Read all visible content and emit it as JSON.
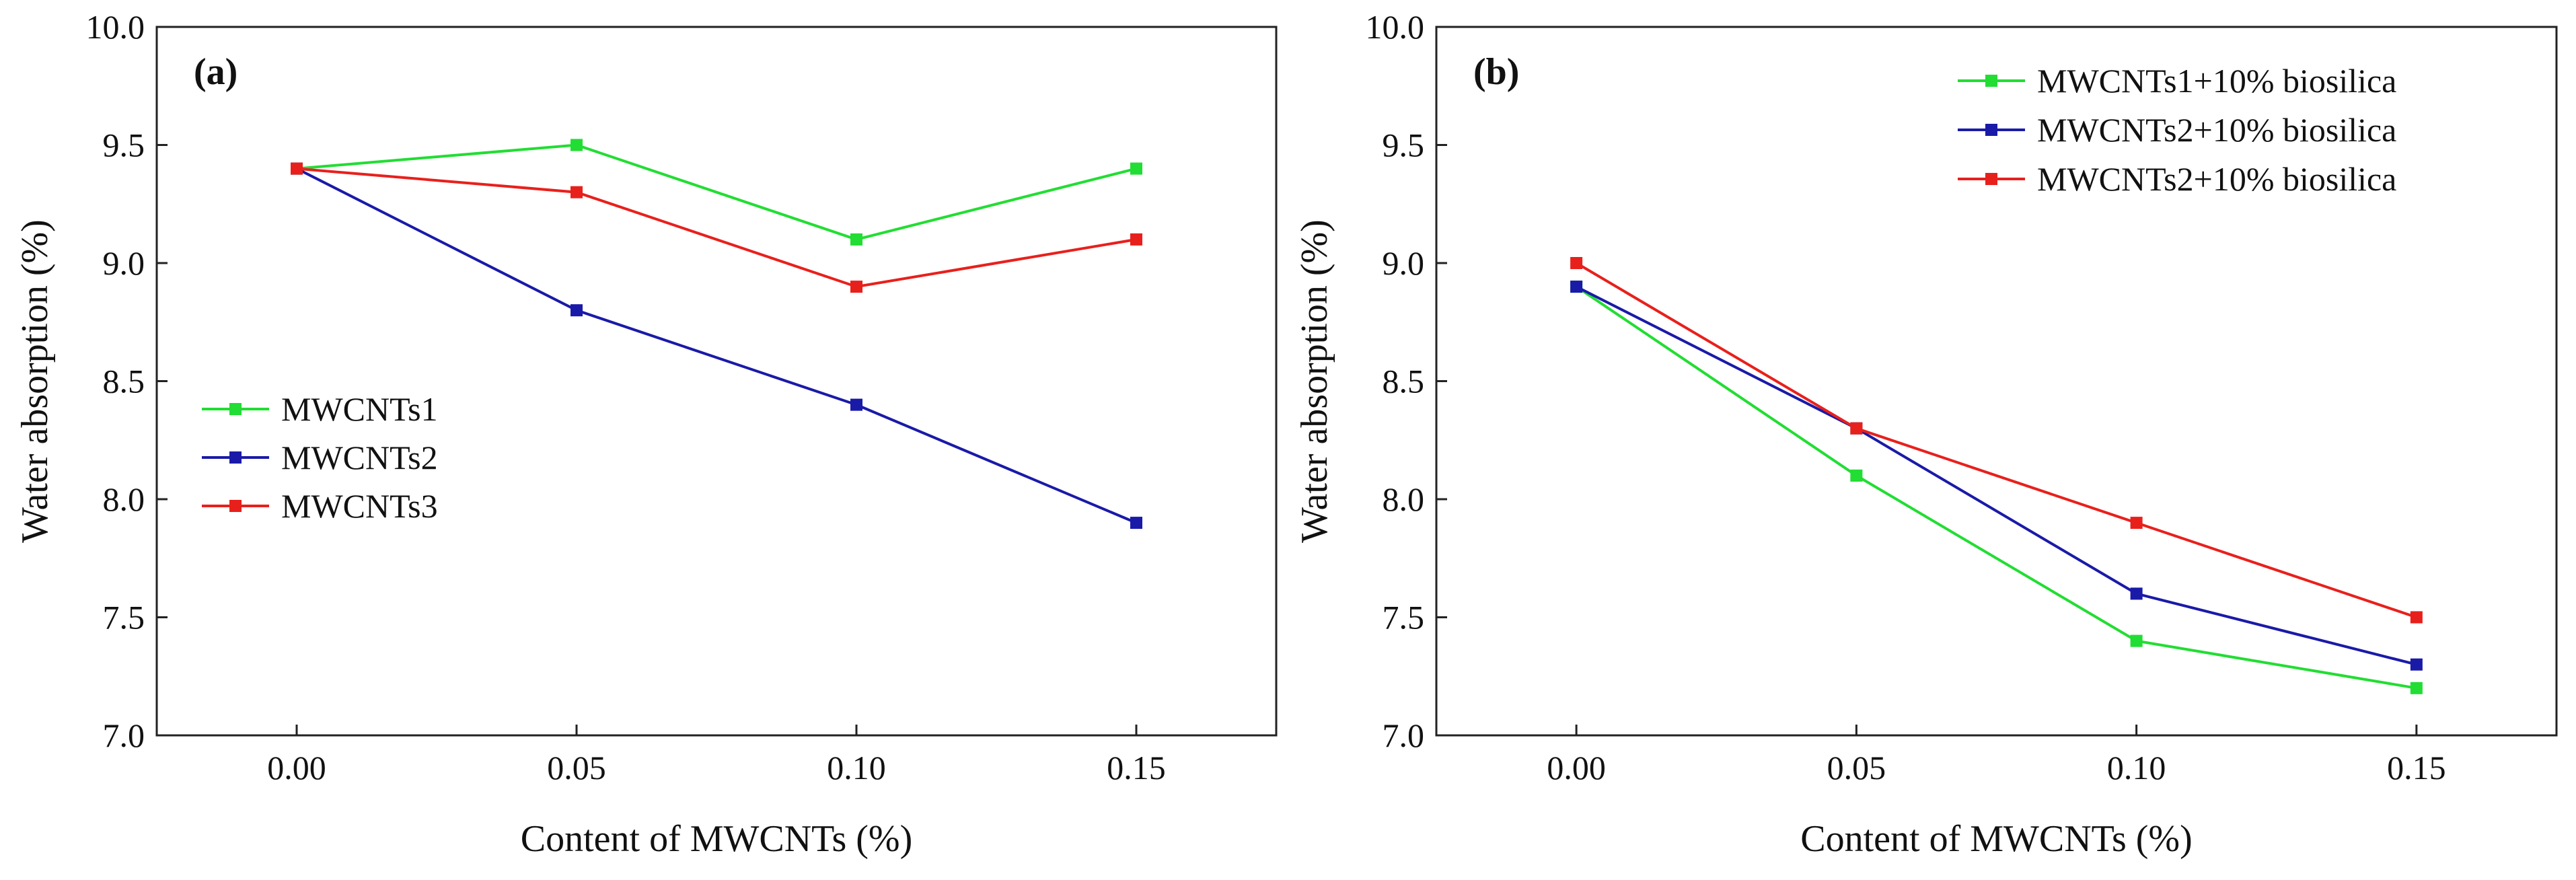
{
  "chart_data": [
    {
      "panel_label": "(a)",
      "type": "line",
      "xlabel": "Content of MWCNTs (%)",
      "ylabel": "Water absorption (%)",
      "x": [
        0.0,
        0.05,
        0.1,
        0.15
      ],
      "x_tick_labels": [
        "0.00",
        "0.05",
        "0.10",
        "0.15"
      ],
      "xlim": [
        -0.025,
        0.175
      ],
      "ylim": [
        7.0,
        10.0
      ],
      "y_ticks": [
        7.0,
        7.5,
        8.0,
        8.5,
        9.0,
        9.5,
        10.0
      ],
      "y_tick_labels": [
        "7.0",
        "7.5",
        "8.0",
        "8.5",
        "9.0",
        "9.5",
        "10.0"
      ],
      "grid": false,
      "legend_position": "center-left",
      "series": [
        {
          "name": "MWCNTs1",
          "color": "#22dd33",
          "values": [
            9.4,
            9.5,
            9.1,
            9.4
          ]
        },
        {
          "name": "MWCNTs2",
          "color": "#1a1aa8",
          "values": [
            9.4,
            8.8,
            8.4,
            7.9
          ]
        },
        {
          "name": "MWCNTs3",
          "color": "#e8201c",
          "values": [
            9.4,
            9.3,
            8.9,
            9.1
          ]
        }
      ]
    },
    {
      "panel_label": "(b)",
      "type": "line",
      "xlabel": "Content of MWCNTs (%)",
      "ylabel": "Water absorption (%)",
      "x": [
        0.0,
        0.05,
        0.1,
        0.15
      ],
      "x_tick_labels": [
        "0.00",
        "0.05",
        "0.10",
        "0.15"
      ],
      "xlim": [
        -0.025,
        0.175
      ],
      "ylim": [
        7.0,
        10.0
      ],
      "y_ticks": [
        7.0,
        7.5,
        8.0,
        8.5,
        9.0,
        9.5,
        10.0
      ],
      "y_tick_labels": [
        "7.0",
        "7.5",
        "8.0",
        "8.5",
        "9.0",
        "9.5",
        "10.0"
      ],
      "grid": false,
      "legend_position": "top-right",
      "series": [
        {
          "name": "MWCNTs1+10% biosilica",
          "color": "#22dd33",
          "values": [
            8.9,
            8.1,
            7.4,
            7.2
          ]
        },
        {
          "name": "MWCNTs2+10% biosilica",
          "color": "#1a1aa8",
          "values": [
            8.9,
            8.3,
            7.6,
            7.3
          ]
        },
        {
          "name": "MWCNTs2+10% biosilica",
          "color": "#e8201c",
          "values": [
            9.0,
            8.3,
            7.9,
            7.5
          ]
        }
      ]
    }
  ]
}
